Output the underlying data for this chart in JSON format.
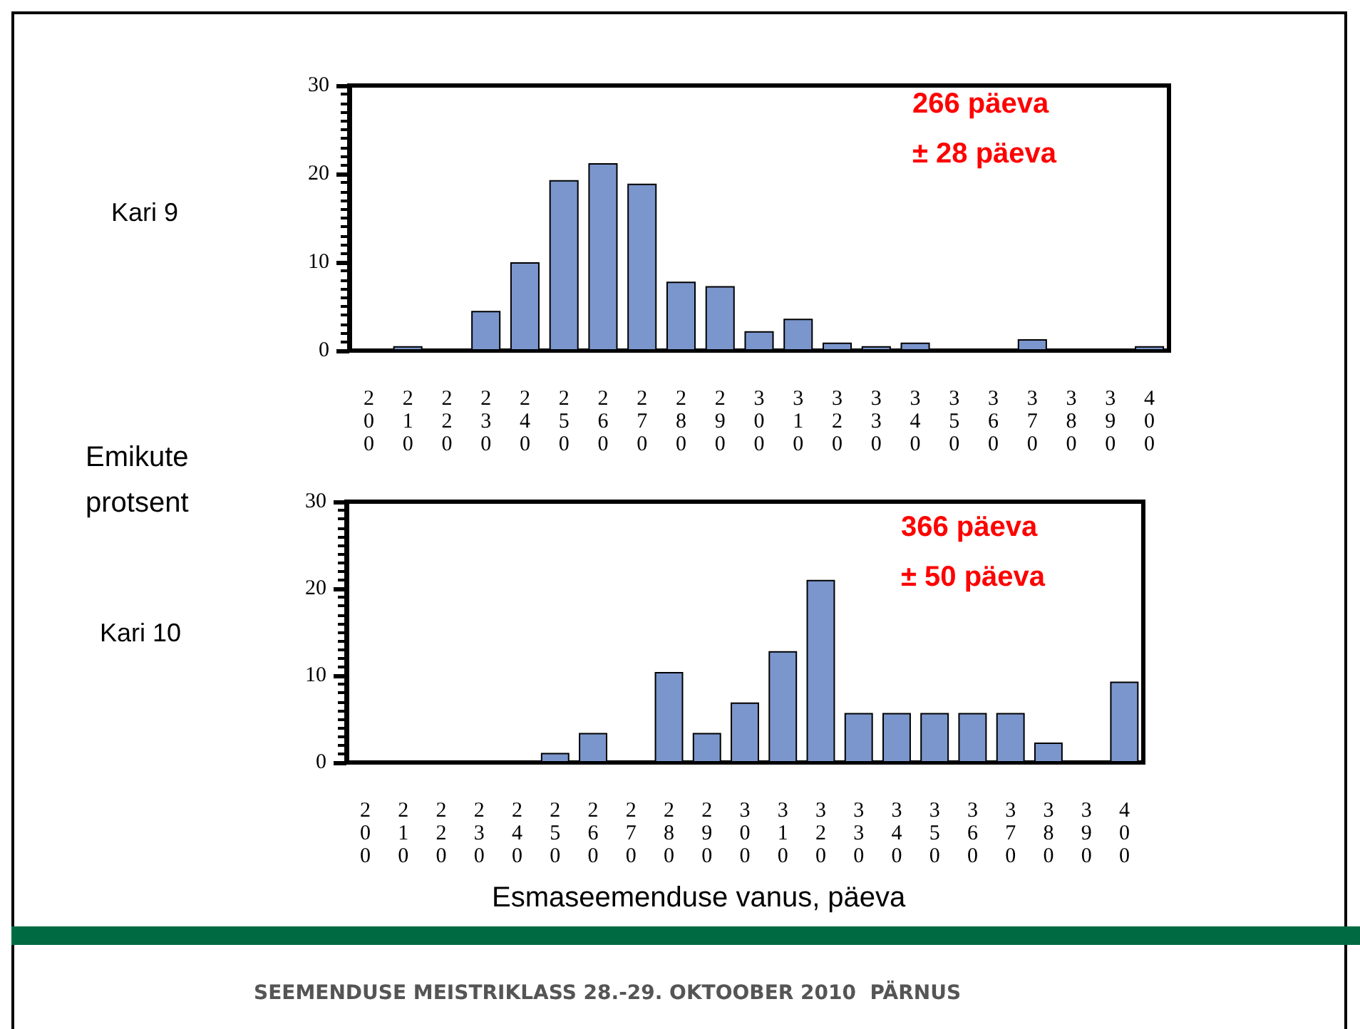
{
  "chart_data": [
    {
      "type": "bar",
      "title": "Kari 9",
      "ylabel": "Emikute protsent",
      "annotations": [
        "266 päeva",
        "± 28 päeva"
      ],
      "categories": [
        "200",
        "210",
        "220",
        "230",
        "240",
        "250",
        "260",
        "270",
        "280",
        "290",
        "300",
        "310",
        "320",
        "330",
        "340",
        "350",
        "360",
        "370",
        "380",
        "390",
        "400"
      ],
      "values": [
        0,
        0.5,
        0,
        4.5,
        10,
        19.3,
        21.2,
        18.9,
        7.8,
        7.3,
        2.2,
        3.6,
        0.9,
        0.5,
        0.9,
        0,
        0,
        1.3,
        0,
        0,
        0.5
      ],
      "color": "#7b96cc",
      "ylim": [
        0,
        30
      ],
      "yticks": [
        0,
        10,
        20,
        30
      ],
      "grid": false
    },
    {
      "type": "bar",
      "title": "Kari 10",
      "xlabel": "Esmaseemenduse vanus, päeva",
      "annotations": [
        "366 päeva",
        "± 50 päeva",
        "SEEMENDUSE MEISTRIKLASS 28.-29. OKTOOBER 2010  PÄRNUS"
      ],
      "categories": [
        "200",
        "210",
        "220",
        "230",
        "240",
        "250",
        "260",
        "270",
        "280",
        "290",
        "300",
        "310",
        "320",
        "330",
        "340",
        "350",
        "360",
        "370",
        "380",
        "390",
        "400"
      ],
      "values": [
        0,
        0,
        0,
        0,
        0,
        1.1,
        3.4,
        0,
        10.4,
        3.4,
        6.9,
        12.8,
        21,
        5.7,
        5.7,
        5.7,
        5.7,
        5.7,
        2.3,
        0,
        9.3
      ],
      "color": "#7b96cc",
      "ylim": [
        0,
        30
      ],
      "yticks": [
        0,
        10,
        20,
        30
      ],
      "grid": false
    }
  ]
}
